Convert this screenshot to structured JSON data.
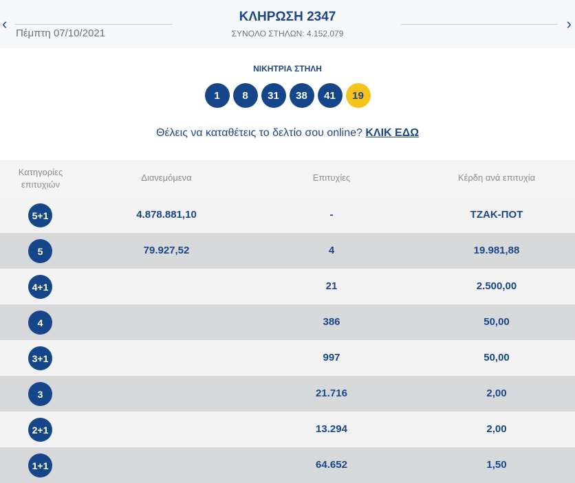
{
  "header": {
    "title": "ΚΛΗΡΩΣΗ 2347",
    "date": "Πέμπτη 07/10/2021",
    "total": "ΣΥΝΟΛΟ ΣΤΗΛΩΝ: 4.152.079",
    "prev": "‹",
    "next": "›"
  },
  "winning": {
    "label": "ΝΙΚΗΤΡΙΑ ΣΤΗΛΗ",
    "numbers": [
      "1",
      "8",
      "31",
      "38",
      "41"
    ],
    "joker": "19",
    "joker_color": "#f6c21c",
    "ball_color": "#15468a"
  },
  "promo": {
    "text": "Θέλεις να καταθέτεις το δελτίο σου online?",
    "link": "ΚΛΙΚ ΕΔΩ"
  },
  "table": {
    "headers": [
      "Κατηγορίες επιτυχιών",
      "Διανεμόμενα",
      "Επιτυχίες",
      "Κέρδη ανά επιτυχία"
    ],
    "rows": [
      {
        "cat": "5+1",
        "dist": "4.878.881,10",
        "wins": "-",
        "prize": "ΤΖΑΚ-ΠΟΤ"
      },
      {
        "cat": "5",
        "dist": "79.927,52",
        "wins": "4",
        "prize": "19.981,88"
      },
      {
        "cat": "4+1",
        "dist": "",
        "wins": "21",
        "prize": "2.500,00"
      },
      {
        "cat": "4",
        "dist": "",
        "wins": "386",
        "prize": "50,00"
      },
      {
        "cat": "3+1",
        "dist": "",
        "wins": "997",
        "prize": "50,00"
      },
      {
        "cat": "3",
        "dist": "",
        "wins": "21.716",
        "prize": "2,00"
      },
      {
        "cat": "2+1",
        "dist": "",
        "wins": "13.294",
        "prize": "2,00"
      },
      {
        "cat": "1+1",
        "dist": "",
        "wins": "64.652",
        "prize": "1,50"
      }
    ]
  }
}
